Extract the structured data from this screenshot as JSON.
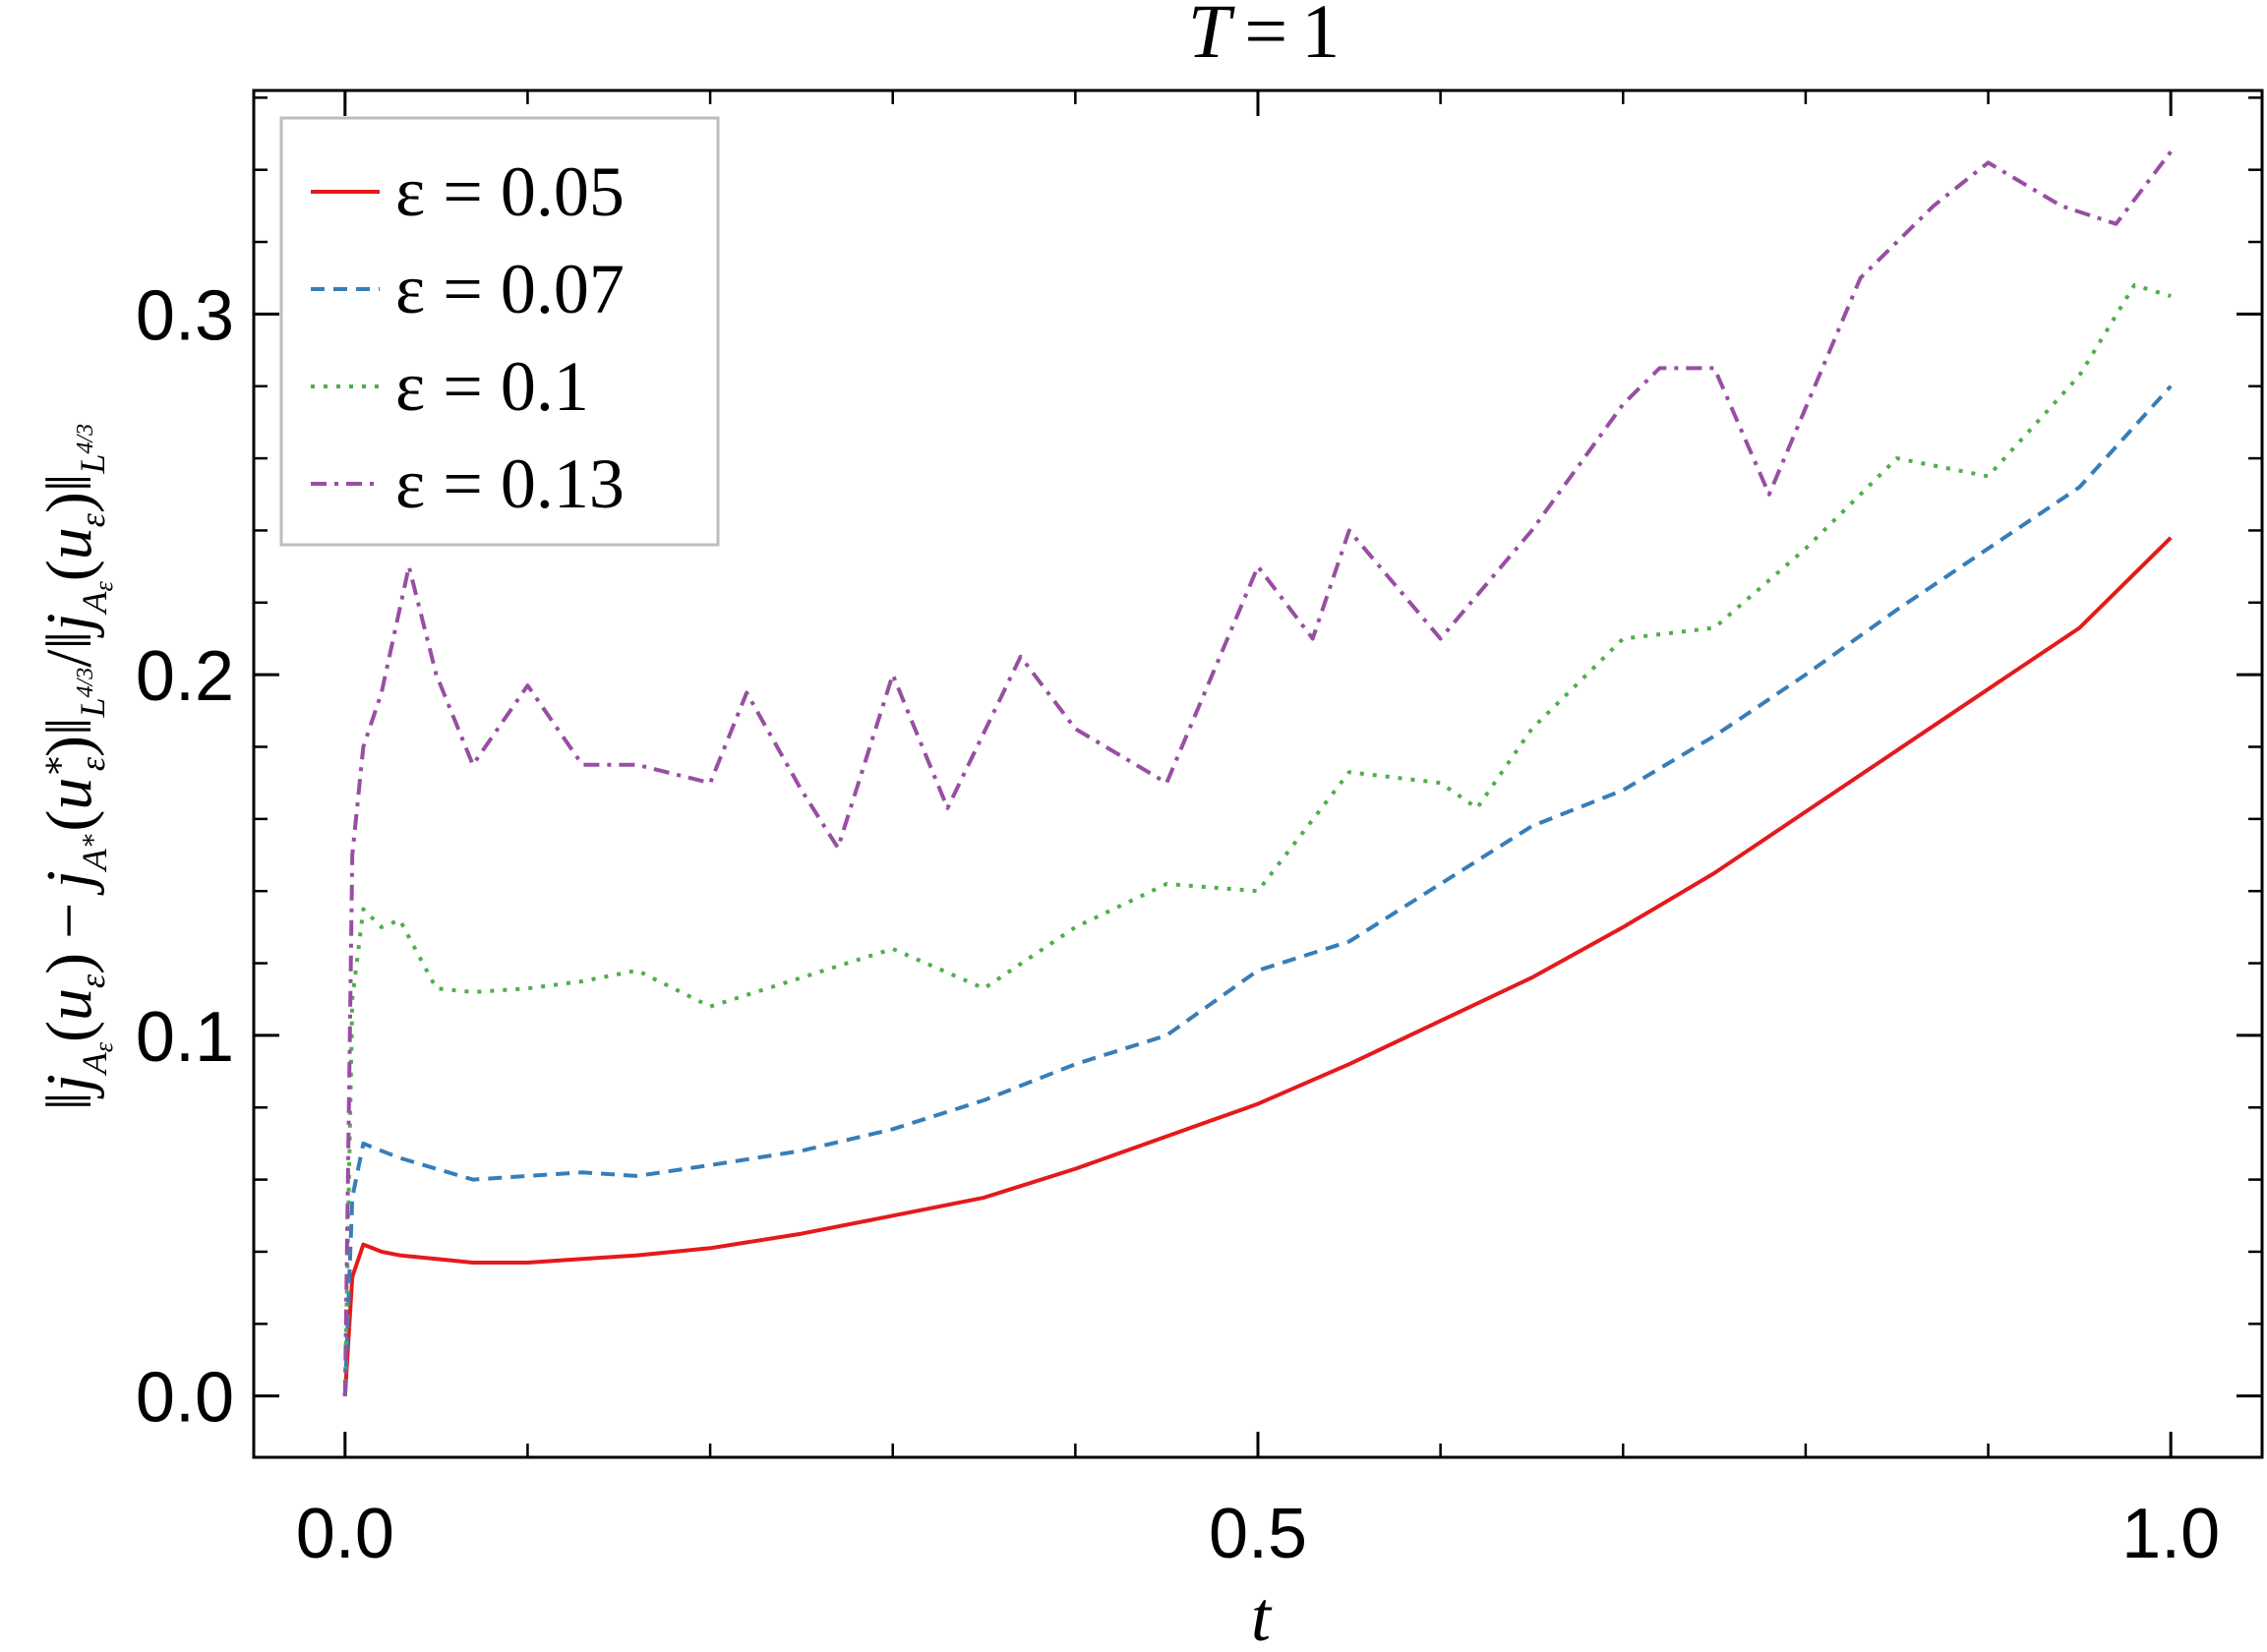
{
  "chart_data": {
    "type": "line",
    "title": "T = 1",
    "xlabel": "t",
    "ylabel": "‖j_{A_ε}(u_ε) − j_{A*}(u*_ε)‖_{L^{4/3}} / ‖j_{A_ε}(u_ε)‖_{L^{4/3}}",
    "xlim": [
      -0.05,
      1.05
    ],
    "ylim": [
      -0.017,
      0.362
    ],
    "xticks": [
      0.0,
      0.5,
      1.0
    ],
    "xtick_labels": [
      "0.0",
      "0.5",
      "1.0"
    ],
    "yticks": [
      0.0,
      0.1,
      0.2,
      0.3
    ],
    "ytick_labels": [
      "0.0",
      "0.1",
      "0.2",
      "0.3"
    ],
    "x_minor_step": 0.1,
    "y_minor_step": 0.02,
    "grid": false,
    "legend_position": "top-left",
    "series": [
      {
        "name": "ε = 0.05",
        "color": "#e41a1c",
        "dash": "solid",
        "x": [
          0.0,
          0.004,
          0.01,
          0.02,
          0.03,
          0.05,
          0.07,
          0.1,
          0.13,
          0.16,
          0.2,
          0.25,
          0.3,
          0.35,
          0.4,
          0.45,
          0.5,
          0.55,
          0.6,
          0.65,
          0.7,
          0.75,
          0.8,
          0.85,
          0.9,
          0.95,
          1.0
        ],
        "y": [
          0.0,
          0.033,
          0.042,
          0.04,
          0.039,
          0.038,
          0.037,
          0.037,
          0.038,
          0.039,
          0.041,
          0.045,
          0.05,
          0.055,
          0.063,
          0.072,
          0.081,
          0.092,
          0.104,
          0.116,
          0.13,
          0.145,
          0.162,
          0.179,
          0.196,
          0.213,
          0.238
        ]
      },
      {
        "name": "ε = 0.07",
        "color": "#377eb8",
        "dash": "dashed",
        "x": [
          0.0,
          0.004,
          0.01,
          0.02,
          0.03,
          0.05,
          0.07,
          0.1,
          0.13,
          0.16,
          0.2,
          0.25,
          0.3,
          0.35,
          0.4,
          0.45,
          0.5,
          0.55,
          0.6,
          0.65,
          0.7,
          0.75,
          0.8,
          0.85,
          0.9,
          0.95,
          1.0
        ],
        "y": [
          0.0,
          0.055,
          0.07,
          0.068,
          0.066,
          0.063,
          0.06,
          0.061,
          0.062,
          0.061,
          0.064,
          0.068,
          0.074,
          0.082,
          0.092,
          0.1,
          0.118,
          0.126,
          0.142,
          0.158,
          0.168,
          0.183,
          0.2,
          0.218,
          0.235,
          0.252,
          0.28
        ]
      },
      {
        "name": "ε = 0.1",
        "color": "#4daf4a",
        "dash": "dotted",
        "x": [
          0.0,
          0.004,
          0.01,
          0.02,
          0.03,
          0.05,
          0.07,
          0.1,
          0.13,
          0.16,
          0.2,
          0.25,
          0.3,
          0.35,
          0.4,
          0.45,
          0.5,
          0.55,
          0.6,
          0.62,
          0.65,
          0.7,
          0.75,
          0.8,
          0.85,
          0.9,
          0.95,
          0.98,
          1.0
        ],
        "y": [
          0.0,
          0.11,
          0.135,
          0.13,
          0.132,
          0.113,
          0.112,
          0.113,
          0.115,
          0.118,
          0.108,
          0.116,
          0.124,
          0.113,
          0.13,
          0.142,
          0.14,
          0.173,
          0.17,
          0.163,
          0.185,
          0.21,
          0.213,
          0.235,
          0.26,
          0.255,
          0.283,
          0.308,
          0.305
        ]
      },
      {
        "name": "ε = 0.13",
        "color": "#984ea3",
        "dash": "dashdot",
        "x": [
          0.0,
          0.004,
          0.01,
          0.02,
          0.035,
          0.05,
          0.07,
          0.1,
          0.13,
          0.16,
          0.2,
          0.22,
          0.25,
          0.27,
          0.3,
          0.33,
          0.37,
          0.4,
          0.45,
          0.5,
          0.53,
          0.55,
          0.6,
          0.65,
          0.7,
          0.72,
          0.75,
          0.78,
          0.83,
          0.87,
          0.9,
          0.94,
          0.97,
          1.0
        ],
        "y": [
          0.0,
          0.15,
          0.18,
          0.195,
          0.23,
          0.2,
          0.175,
          0.197,
          0.175,
          0.175,
          0.17,
          0.195,
          0.168,
          0.152,
          0.2,
          0.163,
          0.205,
          0.185,
          0.17,
          0.23,
          0.21,
          0.24,
          0.21,
          0.24,
          0.275,
          0.285,
          0.285,
          0.25,
          0.31,
          0.33,
          0.342,
          0.33,
          0.325,
          0.345
        ]
      }
    ]
  }
}
